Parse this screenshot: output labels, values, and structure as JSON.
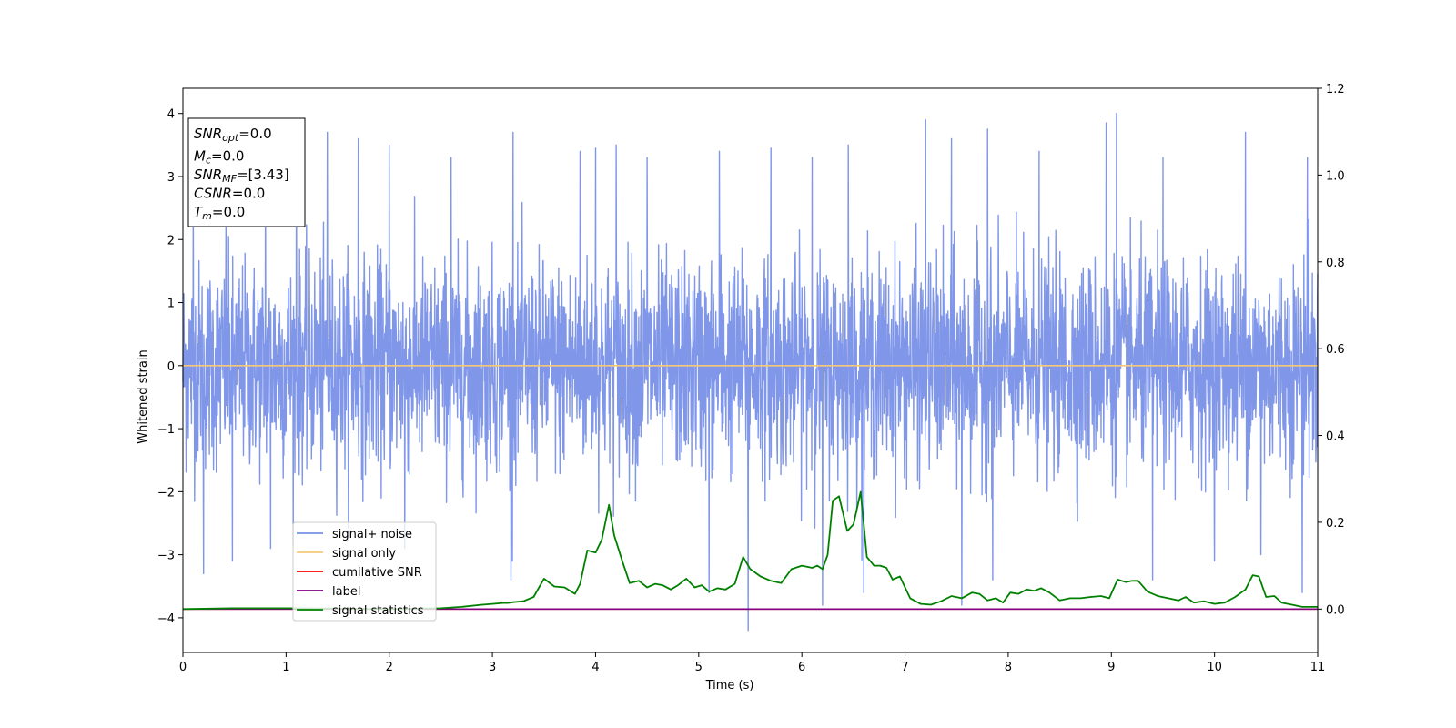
{
  "chart_data": {
    "type": "line",
    "xlabel": "Time (s)",
    "ylabel": "Whitened strain",
    "xlim": [
      0,
      11
    ],
    "ylim": [
      -4.55,
      4.4
    ],
    "y2lim": [
      -0.1,
      1.2
    ],
    "xticks": [
      0,
      1,
      2,
      3,
      4,
      5,
      6,
      7,
      8,
      9,
      10,
      11
    ],
    "yticks": [
      -4,
      -3,
      -2,
      -1,
      0,
      1,
      2,
      3,
      4
    ],
    "y2ticks": [
      "0.0",
      "0.2",
      "0.4",
      "0.6",
      "0.8",
      "1.0",
      "1.2"
    ],
    "grid": false,
    "legend_position": "lower-left",
    "info_box": {
      "position": "top-left",
      "lines": [
        {
          "main": "SNR",
          "sub": "opt",
          "value": "=0.0"
        },
        {
          "main": "M",
          "sub": "c",
          "value": "=0.0"
        },
        {
          "main": "SNR",
          "sub": "MF",
          "value": "=[3.43]"
        },
        {
          "main": "CSNR",
          "sub": "",
          "value": "=0.0"
        },
        {
          "main": "T",
          "sub": "m",
          "value": "=0.0"
        }
      ]
    },
    "series": [
      {
        "name": "signal+ noise",
        "color": "#7890e8",
        "axis": "left",
        "style": "dense noise, mean 0, std ~0.85",
        "peaks": [
          {
            "x": 0.1,
            "y": 2.8
          },
          {
            "x": 0.42,
            "y": 3.3
          },
          {
            "x": 0.8,
            "y": 3.3
          },
          {
            "x": 1.1,
            "y": 3.7
          },
          {
            "x": 1.4,
            "y": 3.7
          },
          {
            "x": 1.7,
            "y": 3.6
          },
          {
            "x": 2.0,
            "y": 3.5
          },
          {
            "x": 2.6,
            "y": 3.3
          },
          {
            "x": 3.2,
            "y": 3.7
          },
          {
            "x": 3.85,
            "y": 3.4
          },
          {
            "x": 4.0,
            "y": 3.45
          },
          {
            "x": 4.2,
            "y": 3.5
          },
          {
            "x": 4.5,
            "y": 3.3
          },
          {
            "x": 5.2,
            "y": 3.4
          },
          {
            "x": 5.7,
            "y": 3.45
          },
          {
            "x": 6.1,
            "y": 3.3
          },
          {
            "x": 6.45,
            "y": 3.5
          },
          {
            "x": 7.2,
            "y": 3.9
          },
          {
            "x": 7.45,
            "y": 3.6
          },
          {
            "x": 7.8,
            "y": 3.75
          },
          {
            "x": 8.3,
            "y": 3.4
          },
          {
            "x": 8.95,
            "y": 3.85
          },
          {
            "x": 9.05,
            "y": 4.0
          },
          {
            "x": 9.5,
            "y": 3.3
          },
          {
            "x": 10.3,
            "y": 3.7
          },
          {
            "x": 10.9,
            "y": 3.3
          }
        ],
        "troughs": [
          {
            "x": 0.2,
            "y": -3.3
          },
          {
            "x": 0.48,
            "y": -3.1
          },
          {
            "x": 0.85,
            "y": -2.9
          },
          {
            "x": 2.15,
            "y": -2.9
          },
          {
            "x": 3.18,
            "y": -3.4
          },
          {
            "x": 5.48,
            "y": -4.2
          },
          {
            "x": 5.1,
            "y": -3.6
          },
          {
            "x": 6.2,
            "y": -3.8
          },
          {
            "x": 6.6,
            "y": -3.6
          },
          {
            "x": 7.55,
            "y": -3.8
          },
          {
            "x": 7.85,
            "y": -3.4
          },
          {
            "x": 9.4,
            "y": -3.4
          },
          {
            "x": 10.0,
            "y": -3.1
          },
          {
            "x": 10.45,
            "y": -3.0
          },
          {
            "x": 10.85,
            "y": -3.6
          }
        ]
      },
      {
        "name": "signal only",
        "color": "#f5c87a",
        "axis": "left",
        "x": [
          0,
          11
        ],
        "y": [
          0,
          0
        ]
      },
      {
        "name": "cumilative SNR",
        "color": "#ff0000",
        "axis": "right",
        "x": [
          0,
          11
        ],
        "y": [
          0,
          0
        ]
      },
      {
        "name": "label",
        "color": "#800080",
        "axis": "right",
        "x": [
          0,
          11
        ],
        "y": [
          0,
          0
        ]
      },
      {
        "name": "signal statistics",
        "color": "#008000",
        "axis": "right",
        "x": [
          0,
          0.5,
          1.0,
          1.5,
          2.0,
          2.5,
          2.7,
          2.9,
          3.0,
          3.1,
          3.15,
          3.2,
          3.3,
          3.4,
          3.5,
          3.6,
          3.7,
          3.8,
          3.85,
          3.92,
          4.0,
          4.06,
          4.13,
          4.18,
          4.26,
          4.33,
          4.42,
          4.5,
          4.58,
          4.65,
          4.73,
          4.8,
          4.88,
          4.96,
          5.03,
          5.1,
          5.18,
          5.26,
          5.35,
          5.43,
          5.5,
          5.6,
          5.7,
          5.8,
          5.9,
          6.0,
          6.1,
          6.15,
          6.2,
          6.25,
          6.3,
          6.36,
          6.44,
          6.5,
          6.57,
          6.63,
          6.7,
          6.76,
          6.82,
          6.88,
          6.95,
          7.05,
          7.15,
          7.25,
          7.35,
          7.45,
          7.55,
          7.65,
          7.72,
          7.8,
          7.88,
          7.95,
          8.02,
          8.1,
          8.18,
          8.25,
          8.32,
          8.4,
          8.5,
          8.6,
          8.7,
          8.8,
          8.9,
          8.98,
          9.06,
          9.14,
          9.2,
          9.26,
          9.35,
          9.45,
          9.55,
          9.65,
          9.72,
          9.8,
          9.9,
          10.0,
          10.1,
          10.2,
          10.3,
          10.37,
          10.43,
          10.5,
          10.58,
          10.65,
          10.75,
          10.85,
          10.95,
          11.0
        ],
        "y": [
          0.0,
          0.002,
          0.002,
          0.001,
          0.0,
          0.002,
          0.005,
          0.01,
          0.012,
          0.014,
          0.014,
          0.016,
          0.018,
          0.028,
          0.07,
          0.052,
          0.05,
          0.035,
          0.058,
          0.135,
          0.13,
          0.16,
          0.24,
          0.17,
          0.11,
          0.06,
          0.065,
          0.05,
          0.058,
          0.055,
          0.045,
          0.055,
          0.07,
          0.05,
          0.055,
          0.04,
          0.048,
          0.045,
          0.058,
          0.12,
          0.092,
          0.075,
          0.065,
          0.06,
          0.092,
          0.1,
          0.095,
          0.1,
          0.092,
          0.125,
          0.25,
          0.26,
          0.18,
          0.195,
          0.27,
          0.12,
          0.1,
          0.1,
          0.095,
          0.068,
          0.075,
          0.025,
          0.012,
          0.01,
          0.018,
          0.03,
          0.025,
          0.038,
          0.035,
          0.02,
          0.025,
          0.015,
          0.038,
          0.035,
          0.045,
          0.042,
          0.048,
          0.038,
          0.02,
          0.025,
          0.025,
          0.028,
          0.03,
          0.025,
          0.068,
          0.062,
          0.065,
          0.065,
          0.04,
          0.03,
          0.025,
          0.02,
          0.028,
          0.015,
          0.018,
          0.012,
          0.015,
          0.028,
          0.045,
          0.078,
          0.075,
          0.028,
          0.03,
          0.015,
          0.01,
          0.005,
          0.005,
          0.005
        ]
      }
    ]
  }
}
